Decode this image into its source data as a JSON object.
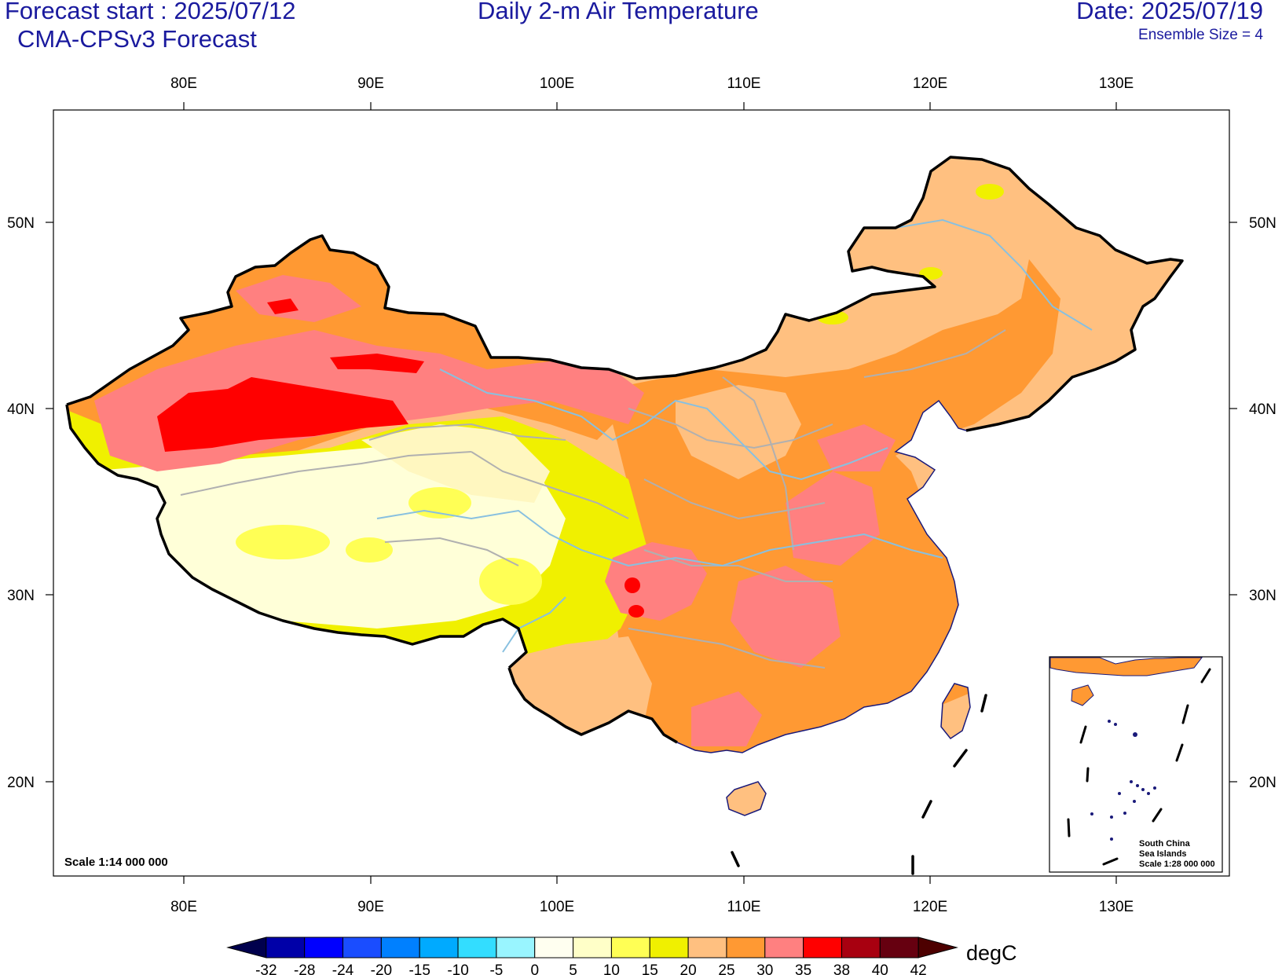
{
  "header": {
    "forecast_start": "Forecast start : 2025/07/12",
    "model": "CMA-CPSv3 Forecast",
    "title": "Daily 2-m Air Temperature",
    "date": "Date: 2025/07/19",
    "ensemble": "Ensemble Size = 4"
  },
  "map": {
    "lon_labels": [
      "80E",
      "90E",
      "100E",
      "110E",
      "120E",
      "130E"
    ],
    "lat_labels": [
      "50N",
      "40N",
      "30N",
      "20N"
    ],
    "scale_label": "Scale 1:14 000 000",
    "inset": {
      "line1": "South China",
      "line2": "Sea Islands",
      "line3": "Scale 1:28 000 000"
    }
  },
  "colorbar": {
    "unit": "degC",
    "ticks": [
      "-32",
      "-28",
      "-24",
      "-20",
      "-15",
      "-10",
      "-5",
      "0",
      "5",
      "10",
      "15",
      "20",
      "25",
      "30",
      "35",
      "38",
      "40",
      "42"
    ],
    "colors": [
      "#00004d",
      "#0000a8",
      "#0000ff",
      "#1a4dff",
      "#0080ff",
      "#00aaff",
      "#33ddff",
      "#99f5ff",
      "#fffff0",
      "#ffffc8",
      "#ffff55",
      "#f0f000",
      "#ffc080",
      "#ff9933",
      "#ff8080",
      "#ff0000",
      "#a80010",
      "#660010",
      "#4d0000"
    ]
  },
  "legend_colors": {
    "cool_plateau": "#ffffd8",
    "warm_25": "#ffc080",
    "hot_30": "#ff9933",
    "hot_35": "#ff8080",
    "extreme_38": "#ff0000",
    "border": "#000000",
    "rivers": "#88c0e0",
    "provinces": "#b0b0b0"
  }
}
